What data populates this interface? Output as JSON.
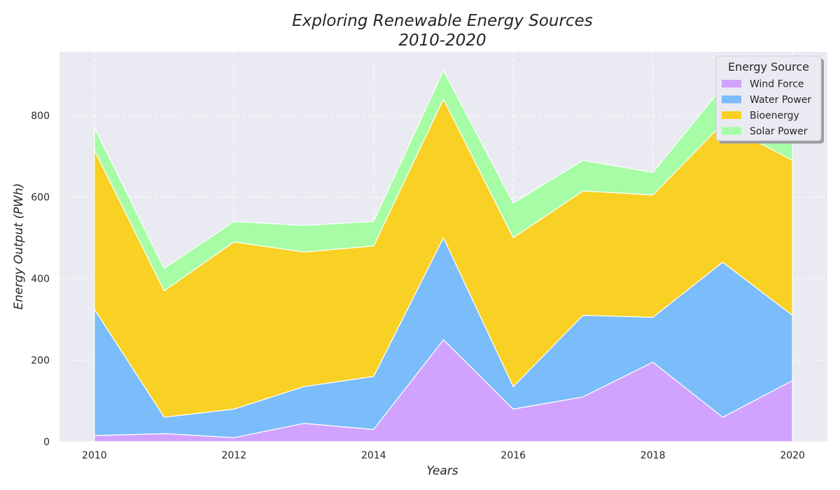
{
  "chart_data": {
    "type": "area",
    "stacked": true,
    "title_line1": "Exploring Renewable Energy Sources",
    "title_line2": "2010-2020",
    "xlabel": "Years",
    "ylabel": "Energy Output (PWh)",
    "x": [
      2010,
      2011,
      2012,
      2013,
      2014,
      2015,
      2016,
      2017,
      2018,
      2019,
      2020
    ],
    "xlim": [
      2009.5,
      2020.5
    ],
    "ylim": [
      0,
      956
    ],
    "x_ticks": [
      2010,
      2012,
      2014,
      2016,
      2018,
      2020
    ],
    "y_ticks": [
      0,
      200,
      400,
      600,
      800
    ],
    "grid": true,
    "background": "#eaeaf2",
    "legend": {
      "title": "Energy Source",
      "placement": "top-right"
    },
    "series": [
      {
        "name": "Wind Force",
        "color": "#d1a3ff",
        "values": [
          15,
          20,
          10,
          45,
          30,
          250,
          80,
          110,
          195,
          60,
          150
        ]
      },
      {
        "name": "Water Power",
        "color": "#7bbcfa",
        "values": [
          310,
          40,
          70,
          90,
          130,
          250,
          55,
          200,
          110,
          380,
          160
        ]
      },
      {
        "name": "Bioenergy",
        "color": "#f9d024",
        "values": [
          390,
          310,
          410,
          330,
          320,
          340,
          365,
          305,
          300,
          340,
          380
        ]
      },
      {
        "name": "Solar Power",
        "color": "#a7fca6",
        "values": [
          55,
          55,
          50,
          65,
          60,
          70,
          85,
          75,
          55,
          90,
          40
        ]
      }
    ]
  }
}
